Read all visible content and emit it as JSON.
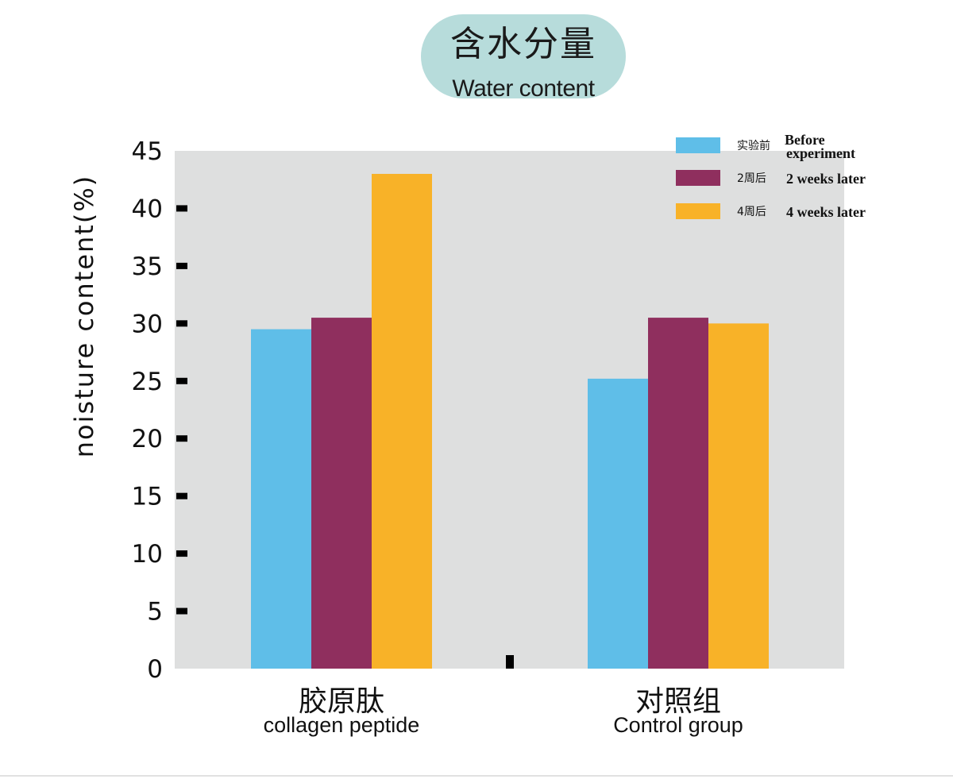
{
  "title": {
    "cn": "含水分量",
    "en": "Water content"
  },
  "colors": {
    "plot_bg": "#dedfdf",
    "title_bg": "#b7dcdb",
    "tick_marker": "#000000"
  },
  "chart_data": {
    "type": "bar",
    "title": "含水分量 Water content",
    "ylabel": "noisture content(%)",
    "xlabel": "",
    "ylim": [
      0,
      45
    ],
    "yticks": [
      0,
      5,
      10,
      15,
      20,
      25,
      30,
      35,
      40,
      45
    ],
    "grid": false,
    "legend_position": "top-right",
    "categories": [
      {
        "cn": "胶原肽",
        "en": "collagen peptide"
      },
      {
        "cn": "对照组",
        "en": "Control group"
      }
    ],
    "series": [
      {
        "name_cn": "实验前",
        "name_en": "Before experiment",
        "color": "#5fbee8",
        "values": [
          29.5,
          25.2
        ]
      },
      {
        "name_cn": "2周后",
        "name_en": "2 weeks later",
        "color": "#8f2f5e",
        "values": [
          30.5,
          30.5
        ]
      },
      {
        "name_cn": "4周后",
        "name_en": "4 weeks later",
        "color": "#f8b228",
        "values": [
          43.0,
          30.0
        ]
      }
    ]
  }
}
